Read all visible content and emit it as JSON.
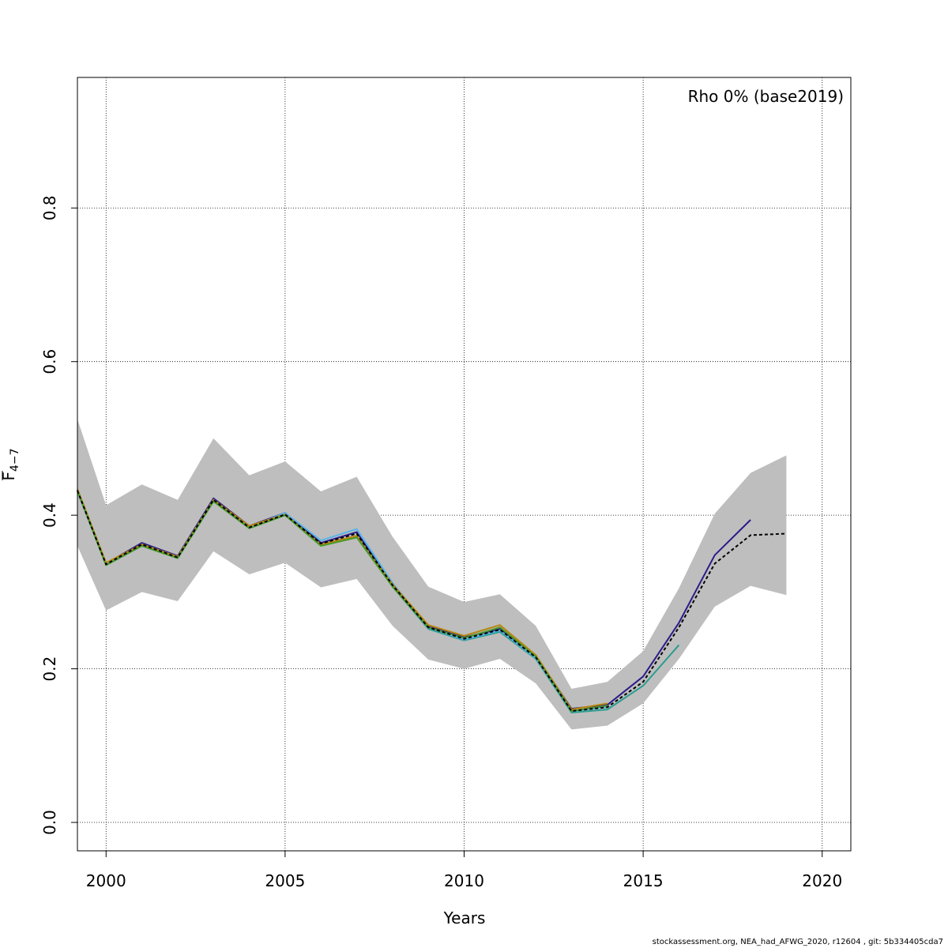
{
  "chart_data": {
    "type": "line",
    "xlabel": "Years",
    "ylabel_main": "F",
    "ylabel_sub": "4−7",
    "legend_text": "Rho 0% (base2019)",
    "xlim": [
      1999.2,
      2020.8
    ],
    "ylim": [
      -0.037,
      0.97
    ],
    "x_ticks": [
      2000,
      2005,
      2010,
      2015,
      2020
    ],
    "x_tick_labels": [
      "2000",
      "2005",
      "2010",
      "2015",
      "2020"
    ],
    "y_ticks": [
      0.0,
      0.2,
      0.4,
      0.6,
      0.8
    ],
    "y_tick_labels": [
      "0.0",
      "0.2",
      "0.4",
      "0.6",
      "0.8"
    ],
    "grid": true,
    "band": {
      "x": [
        1999.2,
        2000,
        2001,
        2002,
        2003,
        2004,
        2005,
        2006,
        2007,
        2008,
        2009,
        2010,
        2011,
        2012,
        2013,
        2014,
        2015,
        2016,
        2017,
        2018,
        2019
      ],
      "upper": [
        0.525,
        0.413,
        0.44,
        0.42,
        0.5,
        0.452,
        0.47,
        0.431,
        0.45,
        0.372,
        0.307,
        0.287,
        0.297,
        0.256,
        0.174,
        0.183,
        0.223,
        0.305,
        0.402,
        0.455,
        0.478
      ],
      "lower": [
        0.36,
        0.276,
        0.3,
        0.288,
        0.353,
        0.323,
        0.338,
        0.306,
        0.317,
        0.256,
        0.212,
        0.2,
        0.213,
        0.181,
        0.121,
        0.126,
        0.155,
        0.213,
        0.281,
        0.308,
        0.296
      ],
      "color": "#bebebe"
    },
    "series": [
      {
        "x": [
          1999.2,
          2000,
          2001,
          2002,
          2003,
          2004,
          2005,
          2006,
          2007,
          2008,
          2009,
          2010,
          2011,
          2012,
          2013,
          2014,
          2015,
          2016,
          2017,
          2018
        ],
        "values": [
          0.433,
          0.337,
          0.364,
          0.347,
          0.422,
          0.386,
          0.403,
          0.364,
          0.378,
          0.309,
          0.255,
          0.241,
          0.252,
          0.217,
          0.148,
          0.153,
          0.19,
          0.26,
          0.348,
          0.394
        ],
        "color": "#2b1b8a",
        "width": 2,
        "dash": ""
      },
      {
        "x": [
          1999.2,
          2000,
          2001,
          2002,
          2003,
          2004,
          2005,
          2006,
          2007,
          2008,
          2009,
          2010,
          2011,
          2012,
          2013,
          2014,
          2015,
          2016
        ],
        "values": [
          0.431,
          0.335,
          0.36,
          0.344,
          0.418,
          0.383,
          0.4,
          0.361,
          0.373,
          0.307,
          0.252,
          0.237,
          0.248,
          0.213,
          0.143,
          0.147,
          0.178,
          0.231
        ],
        "color": "#2a9d8f",
        "width": 2,
        "dash": ""
      },
      {
        "x": [
          1999.2,
          2000,
          2001,
          2002,
          2003,
          2004,
          2005,
          2006,
          2007,
          2008,
          2009,
          2010,
          2011,
          2012,
          2013,
          2014
        ],
        "values": [
          0.433,
          0.337,
          0.362,
          0.346,
          0.42,
          0.384,
          0.403,
          0.367,
          0.382,
          0.312,
          0.254,
          0.238,
          0.25,
          0.214,
          0.145,
          0.15
        ],
        "color": "#56b4e9",
        "width": 2,
        "dash": ""
      },
      {
        "x": [
          1999.2,
          2000,
          2001,
          2002,
          2003,
          2004,
          2005,
          2006,
          2007,
          2008,
          2009,
          2010,
          2011,
          2012,
          2013,
          2014
        ],
        "values": [
          0.434,
          0.338,
          0.362,
          0.346,
          0.42,
          0.386,
          0.401,
          0.362,
          0.373,
          0.31,
          0.257,
          0.243,
          0.257,
          0.218,
          0.147,
          0.155
        ],
        "color": "#b8860b",
        "width": 2,
        "dash": ""
      },
      {
        "x": [
          1999.2,
          2000,
          2001,
          2002,
          2003,
          2004,
          2005,
          2006,
          2007,
          2008,
          2009,
          2010,
          2011,
          2012,
          2013,
          2014
        ],
        "values": [
          0.432,
          0.335,
          0.36,
          0.344,
          0.418,
          0.383,
          0.4,
          0.36,
          0.371,
          0.307,
          0.254,
          0.24,
          0.254,
          0.216,
          0.145,
          0.152
        ],
        "color": "#4a9a2a",
        "width": 2,
        "dash": ""
      },
      {
        "x": [
          1999.2,
          2000,
          2001,
          2002,
          2003,
          2004,
          2005,
          2006,
          2007,
          2008,
          2009,
          2010,
          2011,
          2012,
          2013,
          2014,
          2015,
          2016,
          2017,
          2018,
          2019
        ],
        "values": [
          0.432,
          0.336,
          0.362,
          0.345,
          0.42,
          0.384,
          0.401,
          0.363,
          0.376,
          0.309,
          0.254,
          0.239,
          0.251,
          0.215,
          0.145,
          0.15,
          0.183,
          0.254,
          0.337,
          0.374,
          0.376
        ],
        "color": "#000000",
        "width": 2,
        "dash": "4,3"
      }
    ]
  },
  "footer": "stockassessment.org, NEA_had_AFWG_2020, r12604 , git: 5b334405cda7"
}
